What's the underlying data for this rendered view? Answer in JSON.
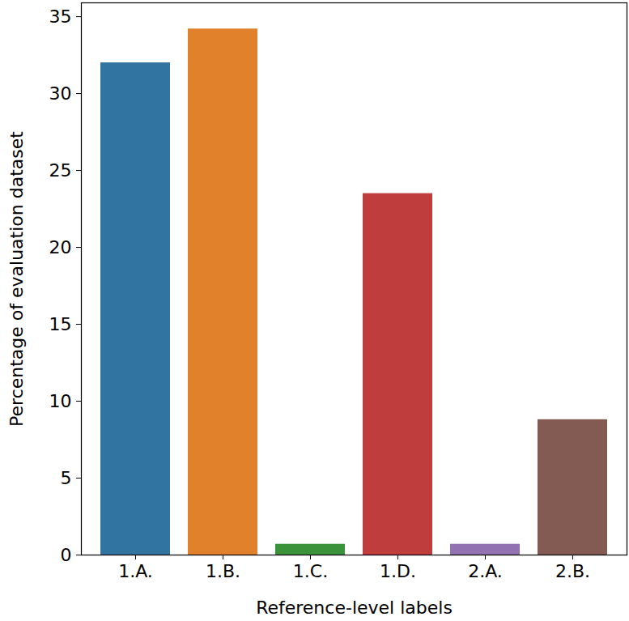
{
  "chart_data": {
    "type": "bar",
    "categories": [
      "1.A.",
      "1.B.",
      "1.C.",
      "1.D.",
      "2.A.",
      "2.B."
    ],
    "values": [
      32.0,
      34.2,
      0.7,
      23.5,
      0.7,
      8.8
    ],
    "colors": [
      "#3274a1",
      "#e1812c",
      "#3a923a",
      "#c03d3e",
      "#9372b2",
      "#845b53"
    ],
    "x_label": "Reference-level labels",
    "y_label": "Percentage of evaluation dataset",
    "ylim": [
      0,
      35.9
    ],
    "yticks": [
      0,
      5,
      10,
      15,
      20,
      25,
      30,
      35
    ],
    "grid": false
  }
}
